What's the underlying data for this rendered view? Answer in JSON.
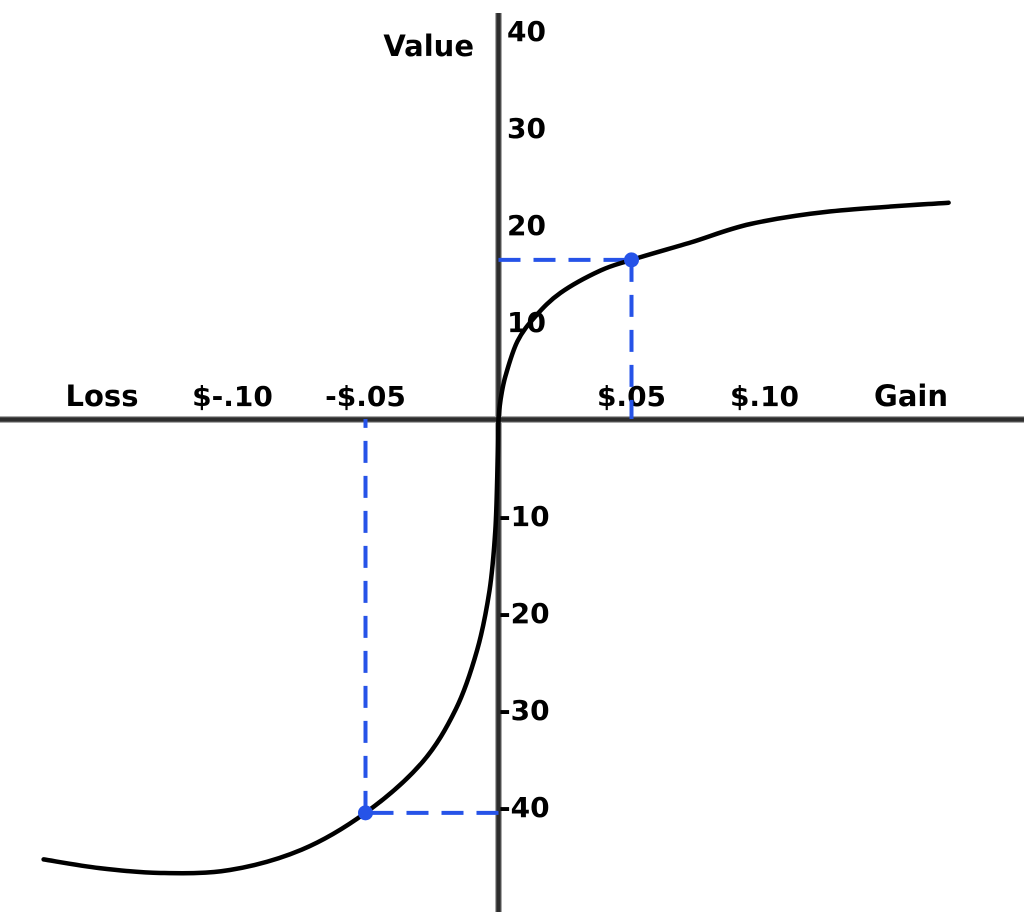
{
  "chart_data": {
    "type": "line",
    "ylabel": "Value",
    "x_left_label": "Loss",
    "x_right_label": "Gain",
    "x_unit": "dollars",
    "y_unit": "subjective value",
    "xlim": [
      -0.19,
      0.2
    ],
    "ylim": [
      -52,
      42
    ],
    "grid": false,
    "legend": false,
    "x_ticks": [
      {
        "label": "$-.10",
        "x": -0.1
      },
      {
        "label": "-$.05",
        "x": -0.05
      },
      {
        "label": "$.05",
        "x": 0.05
      },
      {
        "label": "$.10",
        "x": 0.1
      }
    ],
    "y_ticks": [
      {
        "label": "40",
        "y": 40
      },
      {
        "label": "30",
        "y": 30
      },
      {
        "label": "20",
        "y": 20
      },
      {
        "label": "10",
        "y": 10
      },
      {
        "label": "-10",
        "y": -10
      },
      {
        "label": "-20",
        "y": -20
      },
      {
        "label": "-30",
        "y": -30
      },
      {
        "label": "-40",
        "y": -40
      }
    ],
    "series": [
      {
        "name": "value-function",
        "points": [
          [
            -0.171,
            -45.4
          ],
          [
            -0.15,
            -46.3
          ],
          [
            -0.127,
            -46.8
          ],
          [
            -0.101,
            -46.5
          ],
          [
            -0.074,
            -44.4
          ],
          [
            -0.05,
            -40.6
          ],
          [
            -0.029,
            -35.5
          ],
          [
            -0.016,
            -29.9
          ],
          [
            -0.008,
            -23.8
          ],
          [
            -0.0034,
            -17.7
          ],
          [
            -0.0012,
            -11.5
          ],
          [
            -0.0004,
            -5.4
          ],
          [
            -0.0001,
            -2.4
          ],
          [
            0,
            0
          ],
          [
            0.0008,
            2.0
          ],
          [
            0.0026,
            4.4
          ],
          [
            0.0071,
            8.0
          ],
          [
            0.0139,
            10.6
          ],
          [
            0.0233,
            13.0
          ],
          [
            0.0383,
            15.3
          ],
          [
            0.05,
            16.4
          ],
          [
            0.0722,
            18.2
          ],
          [
            0.0947,
            20.1
          ],
          [
            0.1248,
            21.4
          ],
          [
            0.1692,
            22.3
          ]
        ]
      }
    ],
    "annotations": [
      {
        "name": "gain-example",
        "x": 0.05,
        "y": 16.4
      },
      {
        "name": "loss-example",
        "x": -0.05,
        "y": -40.6
      }
    ]
  },
  "colors": {
    "background": "#ffffff",
    "axis": "#2d2d2d",
    "axis_halo": "#aaaaaa",
    "curve": "#000000",
    "annotation": "#2653e8",
    "text": "#000000"
  }
}
